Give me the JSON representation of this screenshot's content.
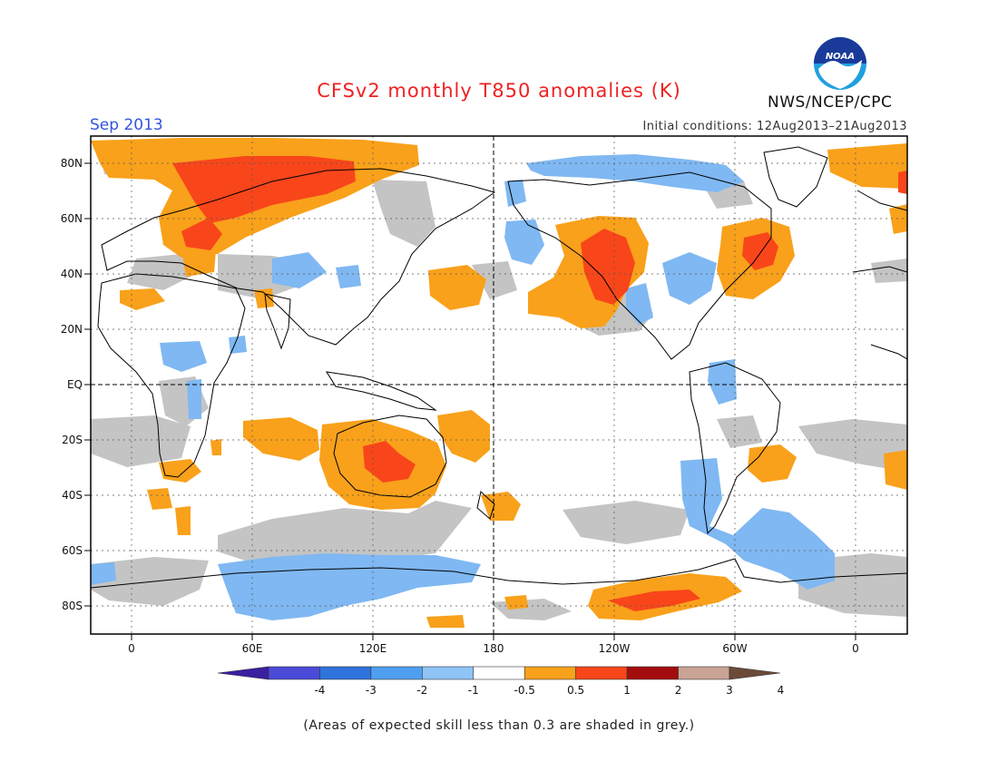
{
  "title": "CFSv2 monthly T850 anomalies (K)",
  "month": "Sep 2013",
  "initial_conditions": "Initial conditions: 12Aug2013–21Aug2013",
  "agency": "NWS/NCEP/CPC",
  "logo_text": "NOAA",
  "footnote": "(Areas of expected skill less than 0.3 are shaded in grey.)",
  "map": {
    "lon_labels": [
      "0",
      "60E",
      "120E",
      "180",
      "120W",
      "60W",
      "0"
    ],
    "lat_labels": [
      "80N",
      "60N",
      "40N",
      "20N",
      "EQ",
      "20S",
      "40S",
      "60S",
      "80S"
    ]
  },
  "colorbar": {
    "labels": [
      "-4",
      "-3",
      "-2",
      "-1",
      "-0.5",
      "0.5",
      "1",
      "2",
      "3",
      "4"
    ],
    "colors": [
      "#3a1fa0",
      "#4a4ad8",
      "#2f73dc",
      "#4f9ff0",
      "#8ec4f6",
      "#ffffff",
      "#f9a11b",
      "#f8461a",
      "#a30d0d",
      "#c9a494",
      "#6b4a3a"
    ]
  },
  "colors": {
    "grey_skill": "#c4c4c4",
    "warm_light": "#f9a11b",
    "warm_mid": "#f8461a",
    "warm_dark": "#a30d0d",
    "cool_light": "#8ec4f6",
    "cool_mid": "#6fb1f4"
  }
}
